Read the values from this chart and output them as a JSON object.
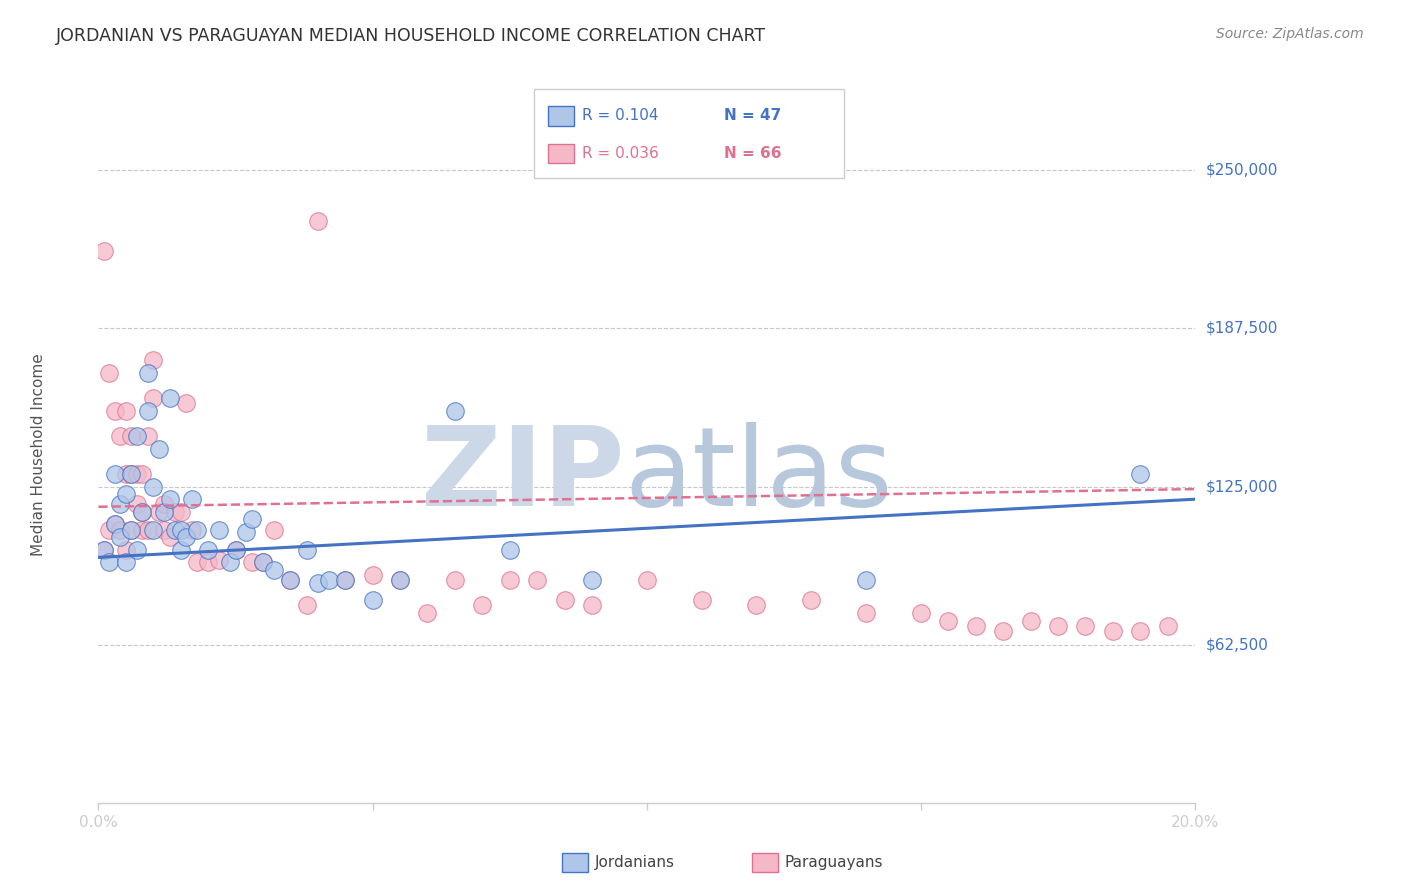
{
  "title": "JORDANIAN VS PARAGUAYAN MEDIAN HOUSEHOLD INCOME CORRELATION CHART",
  "source": "Source: ZipAtlas.com",
  "ylabel": "Median Household Income",
  "x_min": 0.0,
  "x_max": 0.2,
  "y_min": 0,
  "y_max": 275000,
  "ytick_vals": [
    62500,
    125000,
    187500,
    250000
  ],
  "ytick_labels": [
    "$62,500",
    "$125,000",
    "$187,500",
    "$250,000"
  ],
  "xtick_vals": [
    0.0,
    0.05,
    0.1,
    0.15,
    0.2
  ],
  "xtick_labels": [
    "0.0%",
    "",
    "",
    "",
    "20.0%"
  ],
  "background_color": "#ffffff",
  "grid_color": "#c8c8c8",
  "title_color": "#333333",
  "axis_label_color": "#4472c4",
  "jordanian_fill": "#aec6e8",
  "jordanian_edge": "#4472c4",
  "paraguayan_fill": "#f4b8c8",
  "paraguayan_edge": "#e07090",
  "jordanian_line_color": "#4472c4",
  "paraguayan_line_color": "#e07090",
  "watermark_zip_color": "#ccd8e8",
  "watermark_atlas_color": "#b8c8dc",
  "legend_R_jordanian": "R = 0.104",
  "legend_N_jordanian": "N = 47",
  "legend_R_paraguayan": "R = 0.036",
  "legend_N_paraguayan": "N = 66",
  "jordanian_scatter_x": [
    0.001,
    0.002,
    0.003,
    0.003,
    0.004,
    0.004,
    0.005,
    0.005,
    0.006,
    0.006,
    0.007,
    0.007,
    0.008,
    0.009,
    0.009,
    0.01,
    0.01,
    0.011,
    0.012,
    0.013,
    0.013,
    0.014,
    0.015,
    0.015,
    0.016,
    0.017,
    0.018,
    0.02,
    0.022,
    0.024,
    0.025,
    0.027,
    0.028,
    0.03,
    0.032,
    0.035,
    0.038,
    0.04,
    0.042,
    0.045,
    0.05,
    0.055,
    0.065,
    0.075,
    0.09,
    0.14,
    0.19
  ],
  "jordanian_scatter_y": [
    100000,
    95000,
    110000,
    130000,
    105000,
    118000,
    95000,
    122000,
    108000,
    130000,
    100000,
    145000,
    115000,
    170000,
    155000,
    108000,
    125000,
    140000,
    115000,
    120000,
    160000,
    108000,
    100000,
    108000,
    105000,
    120000,
    108000,
    100000,
    108000,
    95000,
    100000,
    107000,
    112000,
    95000,
    92000,
    88000,
    100000,
    87000,
    88000,
    88000,
    80000,
    88000,
    155000,
    100000,
    88000,
    88000,
    130000
  ],
  "paraguayan_scatter_x": [
    0.001,
    0.001,
    0.002,
    0.002,
    0.003,
    0.003,
    0.004,
    0.004,
    0.005,
    0.005,
    0.005,
    0.006,
    0.006,
    0.006,
    0.007,
    0.007,
    0.008,
    0.008,
    0.008,
    0.009,
    0.009,
    0.01,
    0.01,
    0.011,
    0.012,
    0.012,
    0.013,
    0.014,
    0.015,
    0.016,
    0.017,
    0.018,
    0.02,
    0.022,
    0.025,
    0.028,
    0.03,
    0.032,
    0.035,
    0.038,
    0.04,
    0.045,
    0.05,
    0.055,
    0.06,
    0.065,
    0.07,
    0.075,
    0.08,
    0.085,
    0.09,
    0.1,
    0.11,
    0.12,
    0.13,
    0.14,
    0.15,
    0.155,
    0.16,
    0.165,
    0.17,
    0.175,
    0.18,
    0.185,
    0.19,
    0.195
  ],
  "paraguayan_scatter_y": [
    218000,
    100000,
    170000,
    108000,
    155000,
    110000,
    145000,
    108000,
    155000,
    130000,
    100000,
    145000,
    130000,
    108000,
    130000,
    118000,
    130000,
    115000,
    108000,
    145000,
    108000,
    160000,
    175000,
    115000,
    108000,
    118000,
    105000,
    115000,
    115000,
    158000,
    108000,
    95000,
    95000,
    96000,
    100000,
    95000,
    95000,
    108000,
    88000,
    78000,
    230000,
    88000,
    90000,
    88000,
    75000,
    88000,
    78000,
    88000,
    88000,
    80000,
    78000,
    88000,
    80000,
    78000,
    80000,
    75000,
    75000,
    72000,
    70000,
    68000,
    72000,
    70000,
    70000,
    68000,
    68000,
    70000
  ],
  "jordanian_trend_x": [
    0.0,
    0.2
  ],
  "jordanian_trend_y": [
    97000,
    120000
  ],
  "paraguayan_trend_x": [
    0.0,
    0.2
  ],
  "paraguayan_trend_y": [
    117000,
    124000
  ]
}
